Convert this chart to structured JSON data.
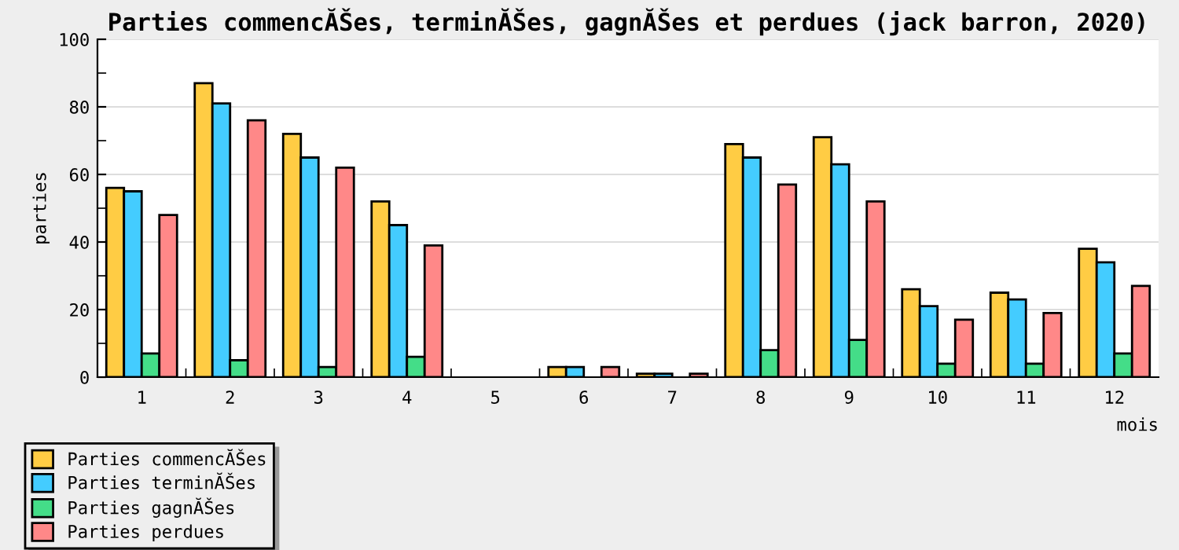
{
  "chart_data": {
    "type": "bar",
    "title": "Parties commencĂŠes, terminĂŠes, gagnĂŠes et perdues (jack barron, 2020)",
    "xlabel": "mois",
    "ylabel": "parties",
    "categories": [
      "1",
      "2",
      "3",
      "4",
      "5",
      "6",
      "7",
      "8",
      "9",
      "10",
      "11",
      "12"
    ],
    "series": [
      {
        "name": "Parties commencĂŠes",
        "color": "#ffcc44",
        "values": [
          56,
          87,
          72,
          52,
          0,
          3,
          1,
          69,
          71,
          26,
          25,
          38
        ]
      },
      {
        "name": "Parties terminĂŠes",
        "color": "#44ccff",
        "values": [
          55,
          81,
          65,
          45,
          0,
          3,
          1,
          65,
          63,
          21,
          23,
          34
        ]
      },
      {
        "name": "Parties gagnĂŠes",
        "color": "#44dd88",
        "values": [
          7,
          5,
          3,
          6,
          0,
          0,
          0,
          8,
          11,
          4,
          4,
          7
        ]
      },
      {
        "name": "Parties perdues",
        "color": "#ff8888",
        "values": [
          48,
          76,
          62,
          39,
          0,
          3,
          1,
          57,
          52,
          17,
          19,
          27
        ]
      }
    ],
    "ylim": [
      0,
      100
    ],
    "yticks": [
      0,
      20,
      40,
      60,
      80,
      100
    ],
    "grid": "y",
    "legend": "bottom left"
  }
}
